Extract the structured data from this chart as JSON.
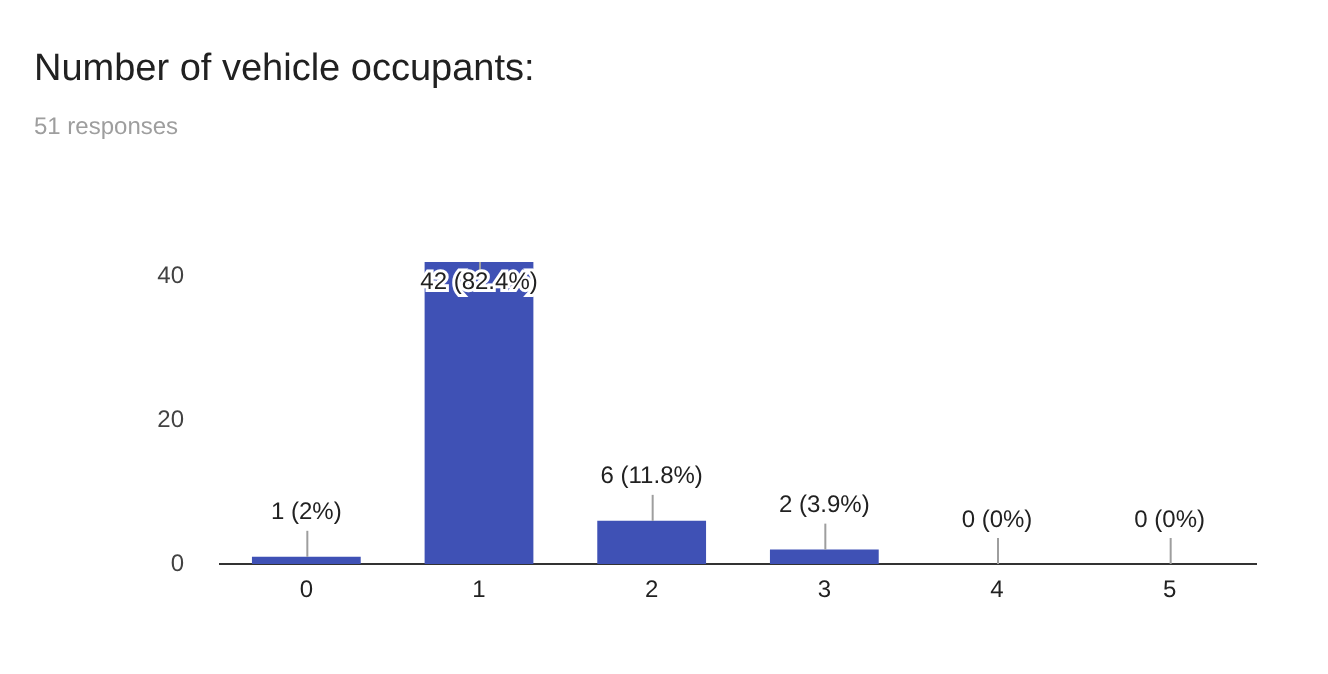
{
  "chart_data": {
    "type": "bar",
    "title": "Number of vehicle occupants:",
    "subtitle": "51 responses",
    "categories": [
      "0",
      "1",
      "2",
      "3",
      "4",
      "5"
    ],
    "values": [
      1,
      42,
      6,
      2,
      0,
      0
    ],
    "value_labels": [
      "1 (2%)",
      "42 (82.4%)",
      "6 (11.8%)",
      "2 (3.9%)",
      "0 (0%)",
      "0 (0%)"
    ],
    "color": "#3f51b5",
    "ylim": [
      0,
      42
    ],
    "yticks": [
      0,
      20,
      40
    ],
    "grid": false,
    "legend": false
  }
}
